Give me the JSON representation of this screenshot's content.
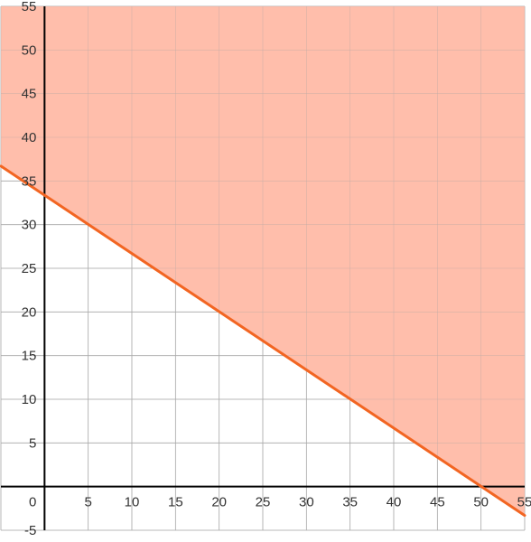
{
  "chart_data": {
    "type": "area",
    "title": "",
    "xlabel": "",
    "ylabel": "",
    "xlim": [
      -5,
      55
    ],
    "ylim": [
      -5,
      55
    ],
    "x_ticks": [
      {
        "value": 5,
        "label": "5"
      },
      {
        "value": 10,
        "label": "10"
      },
      {
        "value": 15,
        "label": "15"
      },
      {
        "value": 20,
        "label": "20"
      },
      {
        "value": 25,
        "label": "25"
      },
      {
        "value": 30,
        "label": "30"
      },
      {
        "value": 35,
        "label": "35"
      },
      {
        "value": 40,
        "label": "40"
      },
      {
        "value": 45,
        "label": "45"
      },
      {
        "value": 50,
        "label": "50"
      },
      {
        "value": 55,
        "label": "55"
      }
    ],
    "y_ticks": [
      {
        "value": 55,
        "label": "55"
      },
      {
        "value": 50,
        "label": "50"
      },
      {
        "value": 45,
        "label": "45"
      },
      {
        "value": 40,
        "label": "40"
      },
      {
        "value": 35,
        "label": "35"
      },
      {
        "value": 30,
        "label": "30"
      },
      {
        "value": 25,
        "label": "25"
      },
      {
        "value": 20,
        "label": "20"
      },
      {
        "value": 15,
        "label": "15"
      },
      {
        "value": 10,
        "label": "10"
      },
      {
        "value": 5,
        "label": "5"
      },
      {
        "value": -5,
        "label": "-5"
      }
    ],
    "origin_label": "0",
    "grid": true,
    "grid_step": 5,
    "series": [
      {
        "type": "line",
        "x": [
          -5,
          55
        ],
        "y": [
          36.7,
          -3.3
        ],
        "color": "#f26522"
      }
    ],
    "shaded_region": {
      "side": "above",
      "color": "#ffbaa6"
    },
    "colors": {
      "grid": "#aaaaaa",
      "axis": "#000000",
      "boundary": "#f26522",
      "fill": "#ffbaa6"
    }
  }
}
